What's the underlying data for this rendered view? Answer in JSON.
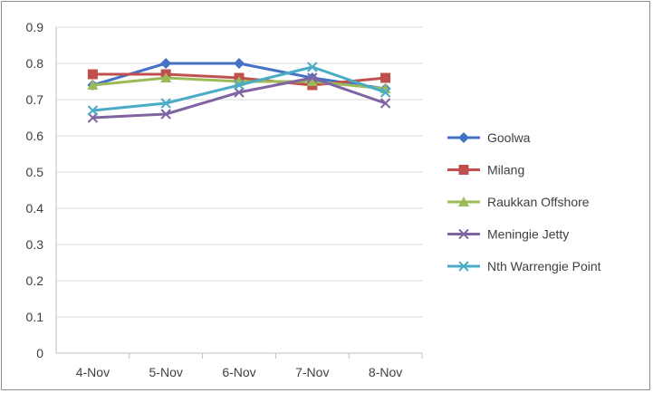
{
  "chart_data": {
    "type": "line",
    "title": "",
    "xlabel": "",
    "ylabel": "",
    "categories": [
      "4-Nov",
      "5-Nov",
      "6-Nov",
      "7-Nov",
      "8-Nov"
    ],
    "ylim": [
      0,
      0.9
    ],
    "yticks": [
      "0",
      "0.1",
      "0.2",
      "0.3",
      "0.4",
      "0.5",
      "0.6",
      "0.7",
      "0.8",
      "0.9"
    ],
    "grid": true,
    "legend_position": "right",
    "series": [
      {
        "name": "Goolwa",
        "color": "#4472c4",
        "marker": "diamond",
        "values": [
          0.74,
          0.8,
          0.8,
          0.76,
          0.73
        ]
      },
      {
        "name": "Milang",
        "color": "#c0504d",
        "marker": "square",
        "values": [
          0.77,
          0.77,
          0.76,
          0.74,
          0.76
        ]
      },
      {
        "name": "Raukkan Offshore",
        "color": "#9bbb59",
        "marker": "triangle",
        "values": [
          0.74,
          0.76,
          0.75,
          0.75,
          0.73
        ]
      },
      {
        "name": "Meningie Jetty",
        "color": "#8064a2",
        "marker": "x",
        "values": [
          0.65,
          0.66,
          0.72,
          0.76,
          0.69
        ]
      },
      {
        "name": "Nth Warrengie Point",
        "color": "#4bacc6",
        "marker": "x",
        "values": [
          0.67,
          0.69,
          0.74,
          0.79,
          0.72
        ]
      }
    ]
  }
}
